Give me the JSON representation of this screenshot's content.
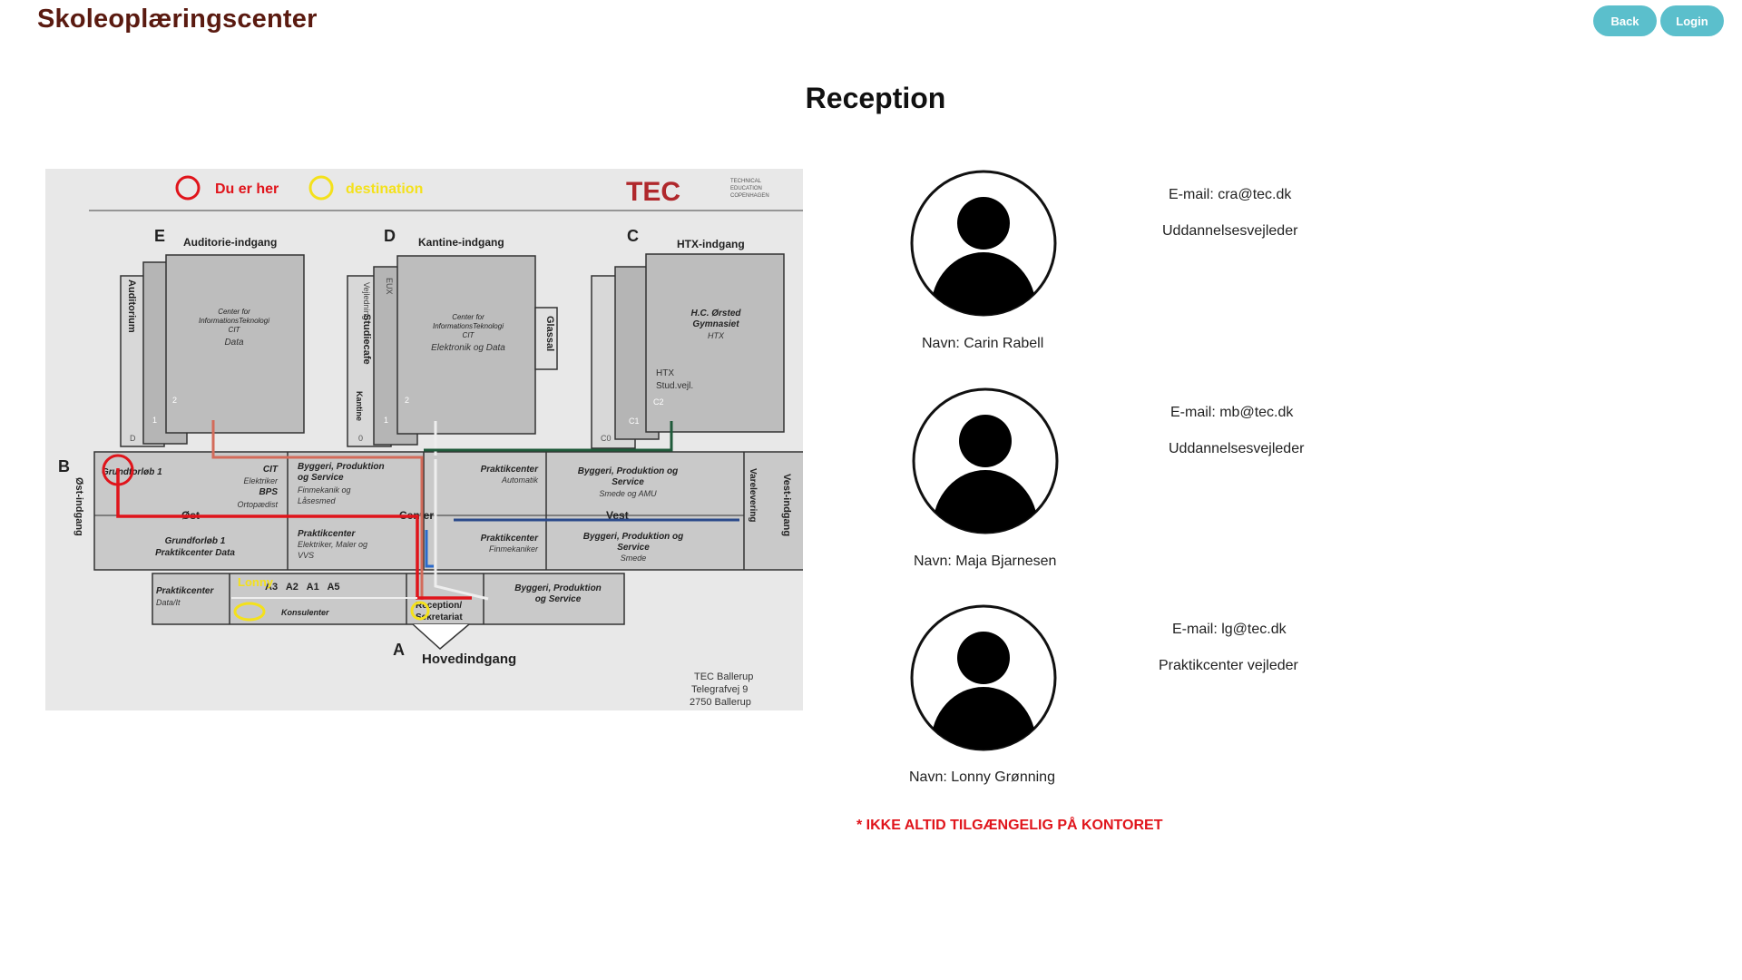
{
  "header": {
    "brand": "Skoleoplæringscenter",
    "back_label": "Back",
    "login_label": "Login"
  },
  "page": {
    "title": "Reception"
  },
  "map": {
    "legend_here": "Du er her",
    "legend_destination": "destination",
    "logo": "TEC",
    "logo_sub": [
      "TECHNICAL",
      "EDUCATION",
      "COPENHAGEN"
    ],
    "entrances": {
      "E": "E",
      "E_label": "Auditorie-indgang",
      "D": "D",
      "D_label": "Kantine-indgang",
      "C": "C",
      "C_label": "HTX-indgang",
      "B": "B",
      "B_label": "Øst-indgang",
      "A": "A",
      "A_label": "Hovedindgang",
      "west_label": "Vest-indgang"
    },
    "labels": {
      "auditorium": "Auditorium",
      "cit_block_1": "Center for",
      "cit_block_2": "InformationsTeknologi",
      "cit_block_3": "CIT",
      "cit_block_4": "Data",
      "cit_d_4": "Elektronik og Data",
      "vejledning": "Vejledning",
      "eux": "EUX",
      "studiecafe": "Studiecafe",
      "kantine": "Kantine",
      "glassal": "Glassal",
      "hc_1": "H.C. Ørsted",
      "hc_2": "Gymnasiet",
      "hc_3": "HTX",
      "htx": "HTX",
      "studvejl": "Stud.vejl.",
      "floor_2": "2",
      "floor_1": "1",
      "floor_0": "0",
      "floor_d": "D",
      "floor_c0": "C0",
      "floor_c1": "C1",
      "floor_c2": "C2",
      "grundforlob1": "Grundforløb 1",
      "cit": "CIT",
      "elektriker": "Elektriker",
      "bps": "BPS",
      "ortopaedist": "Ortopædist",
      "byggeri_1": "Byggeri, Produktion",
      "byggeri_2": "og Service",
      "finmek_1": "Finmekanik og",
      "finmek_2": "Låsesmed",
      "praktik_auto_1": "Praktikcenter",
      "praktik_auto_2": "Automatik",
      "bps_smede_1": "Byggeri, Produktion og",
      "bps_smede_2": "Service",
      "bps_smede_3": "Smede og AMU",
      "varelevering": "Varelevering",
      "ost": "Øst",
      "center": "Center",
      "vest": "Vest",
      "gf_data_1": "Grundforløb 1",
      "gf_data_2": "Praktikcenter Data",
      "praktik_el_1": "Praktikcenter",
      "praktik_el_2": "Elektriker, Maler og",
      "praktik_el_3": "VVS",
      "praktik_fin_1": "Praktikcenter",
      "praktik_fin_2": "Finmekaniker",
      "bps_smede2_1": "Byggeri, Produktion og",
      "bps_smede2_2": "Service",
      "bps_smede2_3": "Smede",
      "praktik_data_1": "Praktikcenter",
      "praktik_data_2": "Data/It",
      "rooms": "A3   A2   A1   A5",
      "konsulenter": "Konsulenter",
      "reception_1": "Reception/",
      "reception_2": "Sekretariat",
      "bps_a_1": "Byggeri, Produktion",
      "bps_a_2": "og Service",
      "lonny": "Lonny",
      "address_1": "TEC Ballerup",
      "address_2": "Telegrafvej 9",
      "address_3": "2750  Ballerup"
    },
    "colors": {
      "here": "#e0141b",
      "destination": "#f4e11b"
    }
  },
  "people": [
    {
      "name": "Navn: Carin Rabell",
      "email": "E-mail: cra@tec.dk",
      "role": "Uddannelsesvejleder"
    },
    {
      "name": "Navn: Maja Bjarnesen",
      "email": "E-mail: mb@tec.dk",
      "role": "Uddannelsesvejleder"
    },
    {
      "name": "Navn: Lonny Grønning",
      "email": "E-mail: lg@tec.dk",
      "role": "Praktikcenter vejleder"
    }
  ],
  "notice": "* IKKE ALTID TILGÆNGELIG PÅ KONTORET"
}
